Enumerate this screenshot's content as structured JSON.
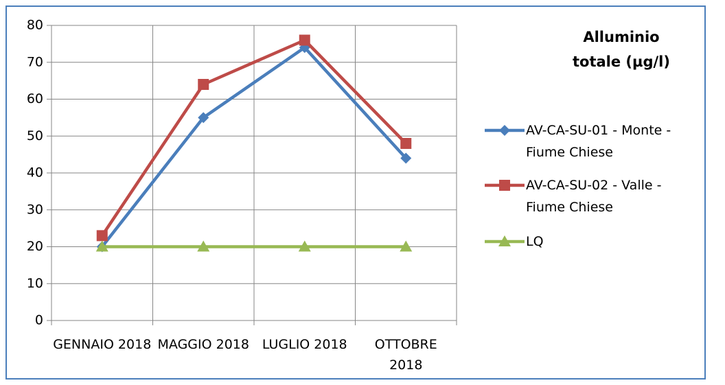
{
  "chart_data": {
    "type": "line",
    "title": "Alluminio totale (µg/l)",
    "categories": [
      "GENNAIO 2018",
      "MAGGIO 2018",
      "LUGLIO 2018",
      "OTTOBRE 2018"
    ],
    "series": [
      {
        "name": "AV-CA-SU-01 - Monte - Fiume Chiese",
        "color": "#4a7ebb",
        "marker": "diamond",
        "values": [
          20,
          55,
          74,
          44
        ]
      },
      {
        "name": "AV-CA-SU-02 - Valle - Fiume Chiese",
        "color": "#be4b48",
        "marker": "square",
        "values": [
          23,
          64,
          76,
          48
        ]
      },
      {
        "name": "LQ",
        "color": "#98b954",
        "marker": "triangle",
        "values": [
          20,
          20,
          20,
          20
        ]
      }
    ],
    "ylim": [
      0,
      80
    ],
    "yticks": [
      0,
      10,
      20,
      30,
      40,
      50,
      60,
      70,
      80
    ],
    "grid": true
  }
}
